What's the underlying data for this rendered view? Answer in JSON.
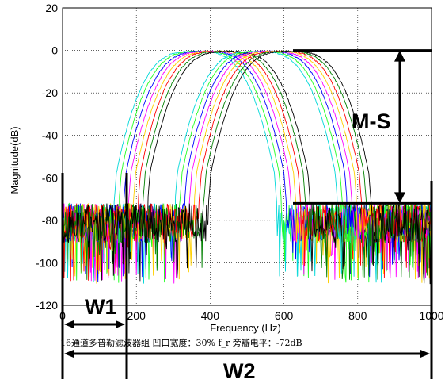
{
  "chart_data": {
    "type": "line",
    "xlabel": "Frequency (Hz)",
    "ylabel": "Magnitude(dB)",
    "xlim": [
      0,
      1000
    ],
    "ylim": [
      -120,
      20
    ],
    "xticks": [
      0,
      200,
      400,
      600,
      800,
      1000
    ],
    "yticks": [
      20,
      0,
      -20,
      -40,
      -60,
      -80,
      -100,
      -120
    ],
    "grid": true,
    "legend": "none",
    "series_count": 16,
    "series_colors": [
      "#00d8d8",
      "#20ff20",
      "#0000ff",
      "#ff00ff",
      "#ffd000",
      "#ff0000",
      "#008000",
      "#000000",
      "#00d8d8",
      "#20ff20",
      "#0000ff",
      "#ff00ff",
      "#ffd000",
      "#ff0000",
      "#008000",
      "#000000"
    ],
    "passband_centers": [
      360,
      373,
      386,
      399,
      412,
      425,
      438,
      451,
      525,
      538,
      551,
      564,
      577,
      590,
      603,
      616
    ],
    "passband_half_width": 215,
    "peak_level": 0,
    "sidelobe_level": -72,
    "annotations": {
      "ms_label": "M-S",
      "w1_label": "W1",
      "w2_label": "W2",
      "caption": "16通道多普勒滤波器组  凹口宽度：30% f_r    旁瓣电平：-72dB"
    }
  }
}
